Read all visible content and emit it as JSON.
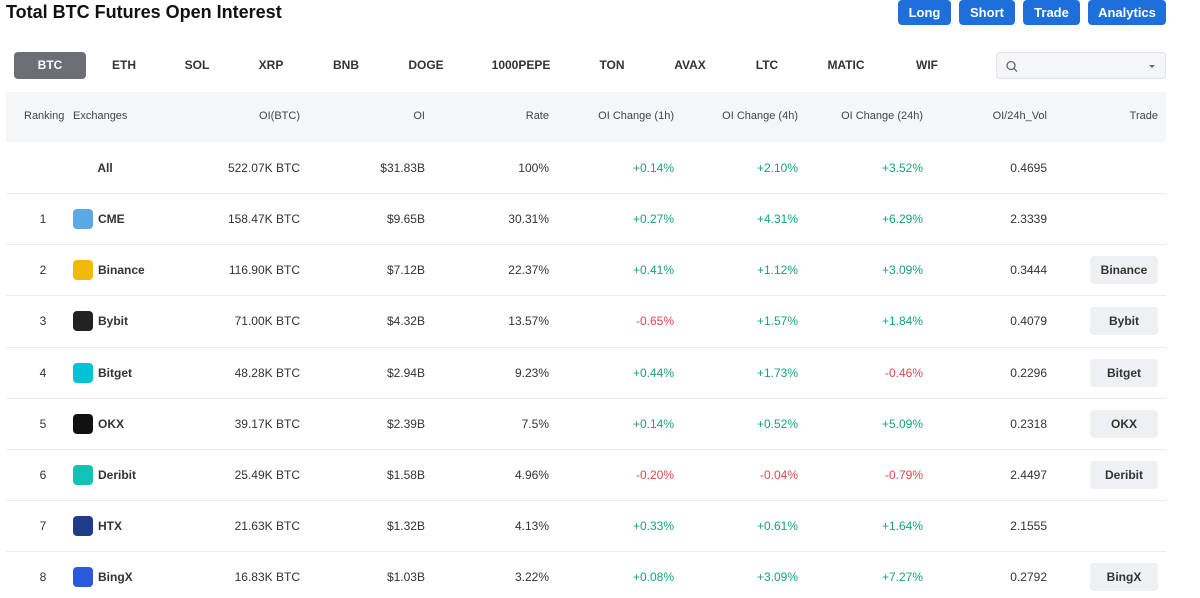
{
  "header": {
    "title": "Total BTC Futures Open Interest",
    "buttons": [
      "Long",
      "Short",
      "Trade",
      "Analytics"
    ]
  },
  "tabs": [
    "BTC",
    "ETH",
    "SOL",
    "XRP",
    "BNB",
    "DOGE",
    "1000PEPE",
    "TON",
    "AVAX",
    "LTC",
    "MATIC",
    "WIF"
  ],
  "table": {
    "columns": [
      "Ranking",
      "Exchanges",
      "OI(BTC)",
      "OI",
      "Rate",
      "OI Change (1h)",
      "OI Change (4h)",
      "OI Change (24h)",
      "OI/24h_Vol",
      "Trade"
    ],
    "rows": [
      [
        null,
        "All",
        "522.07K BTC",
        "$31.83B",
        "100%",
        "+0.14%",
        "+2.10%",
        "+3.52%",
        "0.4695",
        null
      ],
      [
        1,
        "CME",
        "158.47K BTC",
        "$9.65B",
        "30.31%",
        "+0.27%",
        "+4.31%",
        "+6.29%",
        "2.3339",
        null
      ],
      [
        2,
        "Binance",
        "116.90K BTC",
        "$7.12B",
        "22.37%",
        "+0.41%",
        "+1.12%",
        "+3.09%",
        "0.3444",
        "Binance"
      ],
      [
        3,
        "Bybit",
        "71.00K BTC",
        "$4.32B",
        "13.57%",
        "-0.65%",
        "+1.57%",
        "+1.84%",
        "0.4079",
        "Bybit"
      ],
      [
        4,
        "Bitget",
        "48.28K BTC",
        "$2.94B",
        "9.23%",
        "+0.44%",
        "+1.73%",
        "-0.46%",
        "0.2296",
        "Bitget"
      ],
      [
        5,
        "OKX",
        "39.17K BTC",
        "$2.39B",
        "7.5%",
        "+0.14%",
        "+0.52%",
        "+5.09%",
        "0.2318",
        "OKX"
      ],
      [
        6,
        "Deribit",
        "25.49K BTC",
        "$1.58B",
        "4.96%",
        "-0.20%",
        "-0.04%",
        "-0.79%",
        "2.4497",
        "Deribit"
      ],
      [
        7,
        "HTX",
        "21.63K BTC",
        "$1.32B",
        "4.13%",
        "+0.33%",
        "+0.61%",
        "+1.64%",
        "2.1555",
        null
      ],
      [
        8,
        "BingX",
        "16.83K BTC",
        "$1.03B",
        "3.22%",
        "+0.08%",
        "+3.09%",
        "+7.27%",
        "0.2792",
        "BingX"
      ]
    ]
  }
}
